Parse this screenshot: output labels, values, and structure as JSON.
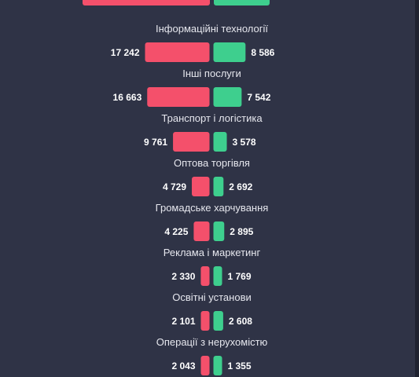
{
  "chart_data": {
    "type": "bar",
    "orientation": "horizontal-diverging",
    "series": [
      {
        "color": "#f4506b"
      },
      {
        "color": "#3ecf8e"
      }
    ],
    "rows": [
      {
        "category": "Інформаційні технології",
        "left_label": "17 242",
        "right_label": "8 586",
        "left": 17242,
        "right": 8586
      },
      {
        "category": "Інші послуги",
        "left_label": "16 663",
        "right_label": "7 542",
        "left": 16663,
        "right": 7542
      },
      {
        "category": "Транспорт і логістика",
        "left_label": "9 761",
        "right_label": "3 578",
        "left": 9761,
        "right": 3578
      },
      {
        "category": "Оптова торгівля",
        "left_label": "4 729",
        "right_label": "2 692",
        "left": 4729,
        "right": 2692
      },
      {
        "category": "Громадське харчування",
        "left_label": "4 225",
        "right_label": "2 895",
        "left": 4225,
        "right": 2895
      },
      {
        "category": "Реклама і маркетинг",
        "left_label": "2 330",
        "right_label": "1 769",
        "left": 2330,
        "right": 1769
      },
      {
        "category": "Освітні установи",
        "left_label": "2 101",
        "right_label": "2 608",
        "left": 2101,
        "right": 2608
      },
      {
        "category": "Операції з нерухомістю",
        "left_label": "2 043",
        "right_label": "1 355",
        "left": 2043,
        "right": 1355
      }
    ]
  },
  "colors": {
    "background": "#2f3346",
    "text": "#ffffff",
    "category_text": "#e6e7ee"
  }
}
